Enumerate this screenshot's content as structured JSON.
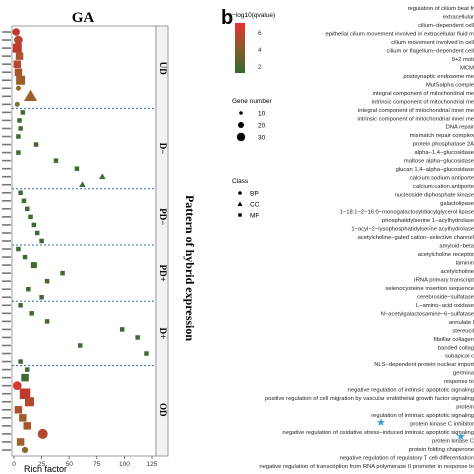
{
  "chart_data": {
    "type": "scatter",
    "panel_a": {
      "title": "GA",
      "xlabel": "Rich factor",
      "xlim": [
        0,
        125
      ],
      "x_ticks": [
        0,
        25,
        50,
        75,
        100,
        125
      ],
      "side_label": "Pattern of hybrid expression",
      "groups": [
        "UD",
        "D−",
        "PD−",
        "PD+",
        "D+",
        "OD"
      ],
      "points": [
        {
          "group": "UD",
          "x": 2,
          "size": 6,
          "class": "BP",
          "color": "#c0392b"
        },
        {
          "group": "UD",
          "x": 4,
          "size": 7,
          "class": "BP",
          "color": "#b5472d"
        },
        {
          "group": "UD",
          "x": 3,
          "size": 6,
          "class": "MF",
          "color": "#c0392b"
        },
        {
          "group": "UD",
          "x": 5,
          "size": 5,
          "class": "MF",
          "color": "#a8542c"
        },
        {
          "group": "UD",
          "x": 3,
          "size": 5,
          "class": "MF",
          "color": "#b5472d"
        },
        {
          "group": "UD",
          "x": 4,
          "size": 5,
          "class": "MF",
          "color": "#a8542c"
        },
        {
          "group": "UD",
          "x": 6,
          "size": 6,
          "class": "MF",
          "color": "#9c602c"
        },
        {
          "group": "UD",
          "x": 4,
          "size": 4,
          "class": "BP",
          "color": "#8a6a2c"
        },
        {
          "group": "UD",
          "x": 15,
          "size": 6,
          "class": "CC",
          "color": "#9c602c"
        },
        {
          "group": "UD",
          "x": 3,
          "size": 4,
          "class": "BP",
          "color": "#7a722c"
        },
        {
          "group": "D−",
          "x": 8,
          "size": 3,
          "class": "MF",
          "color": "#3f6b31"
        },
        {
          "group": "D−",
          "x": 5,
          "size": 3,
          "class": "MF",
          "color": "#3f6b31"
        },
        {
          "group": "D−",
          "x": 6,
          "size": 3,
          "class": "MF",
          "color": "#4a6a30"
        },
        {
          "group": "D−",
          "x": 4,
          "size": 3,
          "class": "MF",
          "color": "#3f6b31"
        },
        {
          "group": "D−",
          "x": 20,
          "size": 3,
          "class": "MF",
          "color": "#3f6b31"
        },
        {
          "group": "D−",
          "x": 4,
          "size": 3,
          "class": "MF",
          "color": "#3f6b31"
        },
        {
          "group": "D−",
          "x": 38,
          "size": 3,
          "class": "MF",
          "color": "#3f6b31"
        },
        {
          "group": "D−",
          "x": 57,
          "size": 3,
          "class": "MF",
          "color": "#3f6b31"
        },
        {
          "group": "D−",
          "x": 80,
          "size": 3,
          "class": "CC",
          "color": "#3f6b31"
        },
        {
          "group": "D−",
          "x": 62,
          "size": 3,
          "class": "CC",
          "color": "#3f6b31"
        },
        {
          "group": "PD−",
          "x": 6,
          "size": 3,
          "class": "MF",
          "color": "#3f6b31"
        },
        {
          "group": "PD−",
          "x": 9,
          "size": 3,
          "class": "MF",
          "color": "#3f6b31"
        },
        {
          "group": "PD−",
          "x": 12,
          "size": 3,
          "class": "MF",
          "color": "#3f6b31"
        },
        {
          "group": "PD−",
          "x": 15,
          "size": 3,
          "class": "MF",
          "color": "#3f6b31"
        },
        {
          "group": "PD−",
          "x": 18,
          "size": 3,
          "class": "MF",
          "color": "#3f6b31"
        },
        {
          "group": "PD−",
          "x": 21,
          "size": 3,
          "class": "MF",
          "color": "#3f6b31"
        },
        {
          "group": "PD−",
          "x": 25,
          "size": 3,
          "class": "MF",
          "color": "#3f6b31"
        },
        {
          "group": "PD+",
          "x": 4,
          "size": 3,
          "class": "MF",
          "color": "#3f6b31"
        },
        {
          "group": "PD+",
          "x": 10,
          "size": 3,
          "class": "MF",
          "color": "#3f6b31"
        },
        {
          "group": "PD+",
          "x": 18,
          "size": 4,
          "class": "MF",
          "color": "#3f6b31"
        },
        {
          "group": "PD+",
          "x": 44,
          "size": 3,
          "class": "MF",
          "color": "#3f6b31"
        },
        {
          "group": "PD+",
          "x": 30,
          "size": 3,
          "class": "MF",
          "color": "#3f6b31"
        },
        {
          "group": "PD+",
          "x": 13,
          "size": 3,
          "class": "MF",
          "color": "#3f6b31"
        },
        {
          "group": "PD+",
          "x": 25,
          "size": 3,
          "class": "MF",
          "color": "#3f6b31"
        },
        {
          "group": "D+",
          "x": 6,
          "size": 3,
          "class": "MF",
          "color": "#3f6b31"
        },
        {
          "group": "D+",
          "x": 16,
          "size": 3,
          "class": "MF",
          "color": "#3f6b31"
        },
        {
          "group": "D+",
          "x": 30,
          "size": 3,
          "class": "MF",
          "color": "#3f6b31"
        },
        {
          "group": "D+",
          "x": 98,
          "size": 3,
          "class": "MF",
          "color": "#3f6b31"
        },
        {
          "group": "D+",
          "x": 112,
          "size": 3,
          "class": "MF",
          "color": "#3f6b31"
        },
        {
          "group": "D+",
          "x": 60,
          "size": 3,
          "class": "MF",
          "color": "#3f6b31"
        },
        {
          "group": "D+",
          "x": 120,
          "size": 3,
          "class": "MF",
          "color": "#3f6b31"
        },
        {
          "group": "D+",
          "x": 6,
          "size": 3,
          "class": "MF",
          "color": "#3f6b31"
        },
        {
          "group": "OD",
          "x": 12,
          "size": 3,
          "class": "MF",
          "color": "#3f6b31"
        },
        {
          "group": "OD",
          "x": 10,
          "size": 5,
          "class": "MF",
          "color": "#3f6b31"
        },
        {
          "group": "OD",
          "x": 3,
          "size": 7,
          "class": "BP",
          "color": "#d23b35"
        },
        {
          "group": "OD",
          "x": 10,
          "size": 7,
          "class": "MF",
          "color": "#c0392b"
        },
        {
          "group": "OD",
          "x": 14,
          "size": 6,
          "class": "MF",
          "color": "#b5472d"
        },
        {
          "group": "OD",
          "x": 4,
          "size": 5,
          "class": "MF",
          "color": "#a8542c"
        },
        {
          "group": "OD",
          "x": 8,
          "size": 5,
          "class": "MF",
          "color": "#9c602c"
        },
        {
          "group": "OD",
          "x": 12,
          "size": 5,
          "class": "MF",
          "color": "#a8542c"
        },
        {
          "group": "OD",
          "x": 26,
          "size": 8,
          "class": "BP",
          "color": "#b5472d"
        },
        {
          "group": "OD",
          "x": 6,
          "size": 5,
          "class": "MF",
          "color": "#9c602c"
        },
        {
          "group": "OD",
          "x": 10,
          "size": 5,
          "class": "BP",
          "color": "#8a6a2c"
        }
      ]
    },
    "panel_b": {
      "panel_label": "b",
      "legend_color_title": "−log10(qvalue)",
      "legend_color_ticks": [
        "6",
        "4",
        "2"
      ],
      "legend_size_title": "Gene number",
      "legend_size_ticks": [
        "10",
        "20",
        "30"
      ],
      "legend_class_title": "Class",
      "legend_class_entries": [
        "BP",
        "CC",
        "MF"
      ],
      "terms": [
        "regulation of cilium beat fr",
        "extracellular",
        "cilium−dependent cell",
        "epithelial cilium movement involved in extracellular fluid m",
        "cilium movement involved in cell",
        "cilium or flagellum−dependent cell",
        "9+2 moti",
        "MCM",
        "postsynaptic endosome me",
        "MutSalpha comple",
        "integral component of mitochondrial me",
        "intrinsic component of mitochondrial me",
        "integral component of mitochondrial inner me",
        "intrinsic component of mitochondrial inner me",
        "DNA repair",
        "mismatch repair complex",
        "protein phosphatase 2A",
        "alpha−1,4−glucosidase",
        "maltose alpha−glucosidase",
        "glucan 1,4−alpha−glucosidase",
        "calcium:sodium antiporte",
        "calcium:cation antiporte",
        "nucleoside diphosphate kinase",
        "galactolipase",
        "1−18:1−2−16:0−monogalactosyldiacylglycerol lipase",
        "phosphatidylserine 1−acylhydrolase",
        "1−acyl−2−lysophosphatidylserine acylhydrolase",
        "acetylcholine−gated cation−selective channel",
        "amyloid−beta",
        "acetylcholine receptor",
        "laminin",
        "acetylcholine",
        "rRNA primary transcript",
        "selenocysteine insertion sequence",
        "cerebroside−sulfatase",
        "L−amino−acid oxidase",
        "N−acetylgalactosamine−6−sulfatase",
        "annulate l",
        "stereocil",
        "fibrillar collagen",
        "banded collag",
        "subapical c",
        "NLS−dependent protein nuclear import",
        "germina",
        "response to",
        "negative regulation of intrinsic apoptotic signaling",
        "positive regulation of cell migration by vascular endothelial growth factor signaling",
        "protein",
        "regulation of intrinsic apoptotic signaling",
        "protein kinase C inhibitor",
        "negative regulation of oxidative stress−induced intrinsic apoptotic signaling",
        "protein kinase C",
        "protein folding chaperone",
        "negative regulation of regulatory T cell differentiation",
        "negative regulation of transcription from RNA polymerase II promoter in response to"
      ]
    }
  }
}
